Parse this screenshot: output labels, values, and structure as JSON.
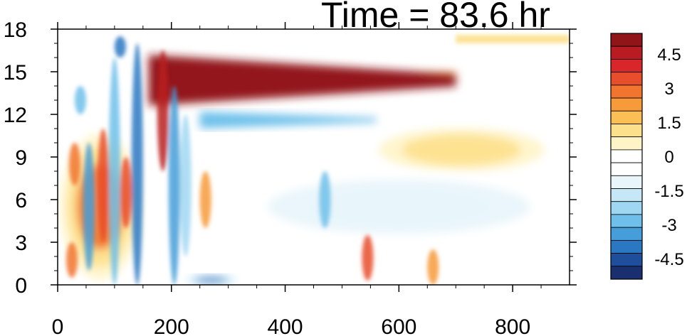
{
  "chart_data": {
    "type": "heatmap",
    "title": "Time = 83.6 hr",
    "xlabel": "",
    "ylabel": "",
    "xlim": [
      0,
      900
    ],
    "ylim": [
      0,
      18
    ],
    "x_ticks": [
      0,
      200,
      400,
      600,
      800
    ],
    "y_ticks": [
      0,
      3,
      6,
      9,
      12,
      15,
      18
    ],
    "colorbar": {
      "levels": [
        -5.4,
        -4.8,
        -4.2,
        -3.6,
        -3.0,
        -2.4,
        -1.8,
        -1.2,
        -0.6,
        0,
        0.6,
        1.2,
        1.8,
        2.4,
        3.0,
        3.6,
        4.2,
        4.8,
        5.4
      ],
      "labels": [
        "4.5",
        "3",
        "1.5",
        "0",
        "-1.5",
        "-3",
        "-4.5"
      ],
      "label_values": [
        4.5,
        3,
        1.5,
        0,
        -1.5,
        -3,
        -4.5
      ],
      "colors": [
        "#8f1519",
        "#b81c22",
        "#d8262a",
        "#e84d2c",
        "#f1742f",
        "#f79a3a",
        "#fbbf55",
        "#fde08c",
        "#fff4c8",
        "#ffffff",
        "#ffffff",
        "#e8f5fb",
        "#c6e8f6",
        "#9fd7f2",
        "#6ec0ea",
        "#459ed9",
        "#2a78c2",
        "#1f4f9c",
        "#1a2f6f"
      ]
    },
    "features": [
      {
        "kind": "band",
        "sign": "positive",
        "description_value": 5.5,
        "x": [
          160,
          700
        ],
        "y": [
          12.6,
          16.2
        ]
      },
      {
        "kind": "band",
        "sign": "negative",
        "value": -2.5,
        "x": [
          250,
          560
        ],
        "y": [
          11.0,
          12.2
        ]
      },
      {
        "kind": "blob",
        "sign": "positive",
        "value": 1.5,
        "x": [
          520,
          900
        ],
        "y": [
          7.5,
          11.5
        ]
      },
      {
        "kind": "blob",
        "sign": "negative",
        "value": -1.2,
        "x": [
          300,
          900
        ],
        "y": [
          3.0,
          8.0
        ]
      },
      {
        "kind": "blob",
        "sign": "negative",
        "value": -4.0,
        "x": [
          220,
          320
        ],
        "y": [
          0,
          0.7
        ]
      },
      {
        "kind": "blob",
        "sign": "positive",
        "value": 3.0,
        "x": [
          0,
          150
        ],
        "y": [
          0,
          11
        ]
      }
    ]
  }
}
